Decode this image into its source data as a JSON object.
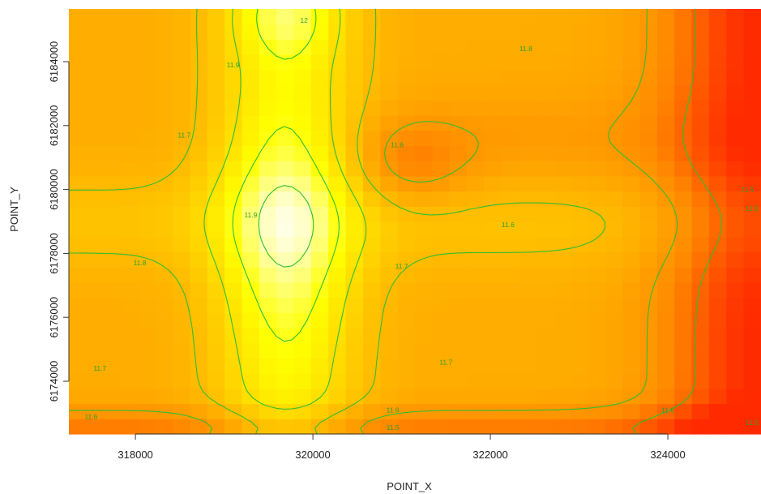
{
  "chart_data": {
    "type": "heatmap",
    "title": "",
    "xlabel": "POINT_X",
    "ylabel": "POINT_Y",
    "xlim": [
      317250,
      325050
    ],
    "ylim": [
      6172350,
      6185650
    ],
    "x_ticks": [
      318000,
      320000,
      322000,
      324000
    ],
    "y_ticks": [
      6174000,
      6176000,
      6178000,
      6180000,
      6182000,
      6184000
    ],
    "x_tick_labels": [
      "318000",
      "320000",
      "322000",
      "324000"
    ],
    "y_tick_labels": [
      "6174000",
      "6176000",
      "6178000",
      "6180000",
      "6182000",
      "6184000"
    ],
    "colormap": [
      "#ff2a00",
      "#ff8a00",
      "#ffc400",
      "#ffff00",
      "#ffffe8"
    ],
    "value_range": [
      11.4,
      12.05
    ],
    "contour_color": "#2fbf2f",
    "contour_labels": [
      {
        "text": "12",
        "x": 319900,
        "y": 6185300
      },
      {
        "text": "11.9",
        "x": 319100,
        "y": 6183900
      },
      {
        "text": "11.8",
        "x": 322400,
        "y": 6184400
      },
      {
        "text": "11.7",
        "x": 318550,
        "y": 6181700
      },
      {
        "text": "11.6",
        "x": 320950,
        "y": 6181400
      },
      {
        "text": "11.9",
        "x": 319300,
        "y": 6179200
      },
      {
        "text": "11.6",
        "x": 322200,
        "y": 6178900
      },
      {
        "text": "11.8",
        "x": 318050,
        "y": 6177700
      },
      {
        "text": "11.7",
        "x": 321000,
        "y": 6177600
      },
      {
        "text": "11.7",
        "x": 317600,
        "y": 6174400
      },
      {
        "text": "11.7",
        "x": 321500,
        "y": 6174600
      },
      {
        "text": "11.6",
        "x": 317500,
        "y": 6172900
      },
      {
        "text": "11.6",
        "x": 320900,
        "y": 6173100
      },
      {
        "text": "11.5",
        "x": 320900,
        "y": 6172550
      },
      {
        "text": "11.6",
        "x": 324000,
        "y": 6173100
      },
      {
        "text": "11.5",
        "x": 324900,
        "y": 6180000
      },
      {
        "text": "11.5",
        "x": 324950,
        "y": 6179400
      },
      {
        "text": "11.5",
        "x": 324950,
        "y": 6172700
      }
    ]
  }
}
